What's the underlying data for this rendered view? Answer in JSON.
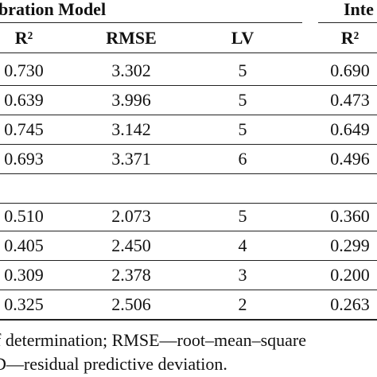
{
  "table": {
    "group_headers": [
      "bration Model",
      "Inte"
    ],
    "columns": [
      "R²",
      "RMSE",
      "LV",
      "R²"
    ],
    "groups": [
      [
        [
          "0.730",
          "3.302",
          "5",
          "0.690"
        ],
        [
          "0.639",
          "3.996",
          "5",
          "0.473"
        ],
        [
          "0.745",
          "3.142",
          "5",
          "0.649"
        ],
        [
          "0.693",
          "3.371",
          "6",
          "0.496"
        ]
      ],
      [
        [
          "0.510",
          "2.073",
          "5",
          "0.360"
        ],
        [
          "0.405",
          "2.450",
          "4",
          "0.299"
        ],
        [
          "0.309",
          "2.378",
          "3",
          "0.200"
        ],
        [
          "0.325",
          "2.506",
          "2",
          "0.263"
        ]
      ]
    ]
  },
  "footnotes": [
    "f  determination;  RMSE—root–mean–square",
    "D—residual predictive deviation."
  ]
}
